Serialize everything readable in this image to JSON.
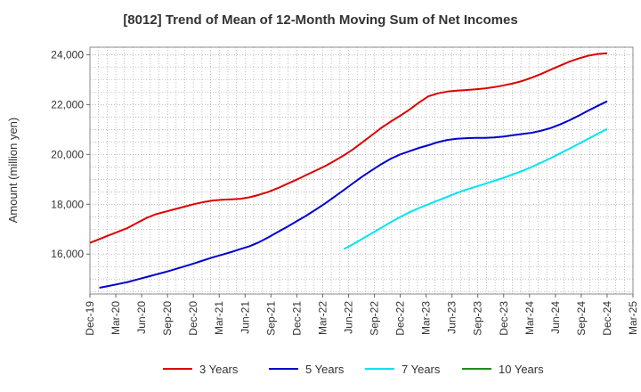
{
  "chart_data": {
    "type": "line",
    "title": "[8012]  Trend of Mean of 12-Month Moving Sum of Net Incomes",
    "xlabel": "",
    "ylabel": "Amount (million yen)",
    "ylim": [
      14400,
      24300
    ],
    "yticks": [
      16000,
      18000,
      20000,
      22000,
      24000
    ],
    "ytick_labels": [
      "16,000",
      "18,000",
      "20,000",
      "22,000",
      "24,000"
    ],
    "xtick_labels": [
      "Dec-19",
      "Mar-20",
      "Jun-20",
      "Sep-20",
      "Dec-20",
      "Mar-21",
      "Jun-21",
      "Sep-21",
      "Dec-21",
      "Mar-22",
      "Jun-22",
      "Sep-22",
      "Dec-22",
      "Mar-23",
      "Jun-23",
      "Sep-23",
      "Dec-23",
      "Mar-24",
      "Jun-24",
      "Sep-24",
      "Dec-24",
      "Mar-25"
    ],
    "grid": true,
    "legend_position": "bottom",
    "series": [
      {
        "name": "3 Years",
        "color": "#dd0000",
        "values": [
          16450,
          16600,
          16750,
          16900,
          17050,
          17250,
          17450,
          17600,
          17700,
          17800,
          17900,
          18000,
          18080,
          18150,
          18180,
          18200,
          18220,
          18280,
          18380,
          18500,
          18650,
          18820,
          18990,
          19170,
          19350,
          19530,
          19740,
          19960,
          20210,
          20490,
          20780,
          21070,
          21320,
          21550,
          21800,
          22080,
          22330,
          22450,
          22520,
          22560,
          22580,
          22610,
          22650,
          22700,
          22770,
          22850,
          22950,
          23080,
          23230,
          23400,
          23560,
          23720,
          23850,
          23960,
          24030,
          24060
        ]
      },
      {
        "name": "5 Years",
        "color": "#0000cc",
        "values": [
          null,
          null,
          null,
          null,
          null,
          null,
          null,
          null,
          null,
          null,
          null,
          null,
          null,
          null,
          null,
          null,
          null,
          null,
          null,
          null,
          null,
          null,
          null,
          null,
          null,
          null,
          null,
          null,
          null,
          null,
          null,
          null,
          null,
          null,
          null,
          null,
          null,
          null,
          null,
          null,
          null,
          null,
          null,
          null,
          null,
          null,
          null,
          null,
          null,
          null,
          null,
          null,
          null,
          null,
          null,
          null
        ],
        "points": [
          [
            1,
            14650
          ],
          [
            2,
            14720
          ],
          [
            3,
            14800
          ],
          [
            4,
            14880
          ],
          [
            5,
            14980
          ],
          [
            6,
            15080
          ],
          [
            7,
            15180
          ],
          [
            8,
            15280
          ],
          [
            9,
            15390
          ],
          [
            10,
            15500
          ],
          [
            11,
            15620
          ],
          [
            12,
            15740
          ],
          [
            13,
            15860
          ],
          [
            14,
            15970
          ],
          [
            15,
            16080
          ],
          [
            16,
            16200
          ],
          [
            17,
            16320
          ],
          [
            18,
            16480
          ],
          [
            19,
            16680
          ],
          [
            20,
            16890
          ],
          [
            21,
            17100
          ],
          [
            22,
            17320
          ],
          [
            23,
            17540
          ],
          [
            24,
            17780
          ],
          [
            25,
            18030
          ],
          [
            26,
            18300
          ],
          [
            27,
            18570
          ],
          [
            28,
            18850
          ],
          [
            29,
            19120
          ],
          [
            30,
            19370
          ],
          [
            31,
            19610
          ],
          [
            32,
            19830
          ],
          [
            33,
            20000
          ],
          [
            34,
            20130
          ],
          [
            35,
            20260
          ],
          [
            36,
            20370
          ],
          [
            37,
            20490
          ],
          [
            38,
            20580
          ],
          [
            39,
            20630
          ],
          [
            40,
            20650
          ],
          [
            41,
            20660
          ],
          [
            42,
            20660
          ],
          [
            43,
            20680
          ],
          [
            44,
            20720
          ],
          [
            45,
            20770
          ],
          [
            46,
            20820
          ],
          [
            47,
            20870
          ],
          [
            48,
            20950
          ],
          [
            49,
            21060
          ],
          [
            50,
            21200
          ],
          [
            51,
            21370
          ],
          [
            52,
            21560
          ],
          [
            53,
            21760
          ],
          [
            54,
            21950
          ],
          [
            55,
            22130
          ]
        ]
      },
      {
        "name": "7 Years",
        "color": "#00e5ee",
        "points": [
          [
            27,
            16200
          ],
          [
            28,
            16400
          ],
          [
            29,
            16620
          ],
          [
            30,
            16840
          ],
          [
            31,
            17060
          ],
          [
            32,
            17280
          ],
          [
            33,
            17490
          ],
          [
            34,
            17680
          ],
          [
            35,
            17850
          ],
          [
            36,
            18000
          ],
          [
            37,
            18150
          ],
          [
            38,
            18300
          ],
          [
            39,
            18450
          ],
          [
            40,
            18580
          ],
          [
            41,
            18700
          ],
          [
            42,
            18820
          ],
          [
            43,
            18940
          ],
          [
            44,
            19060
          ],
          [
            45,
            19200
          ],
          [
            46,
            19340
          ],
          [
            47,
            19500
          ],
          [
            48,
            19670
          ],
          [
            49,
            19850
          ],
          [
            50,
            20040
          ],
          [
            51,
            20230
          ],
          [
            52,
            20430
          ],
          [
            53,
            20630
          ],
          [
            54,
            20830
          ],
          [
            55,
            21020
          ]
        ]
      },
      {
        "name": "10 Years",
        "color": "#228B22",
        "points": []
      }
    ]
  }
}
